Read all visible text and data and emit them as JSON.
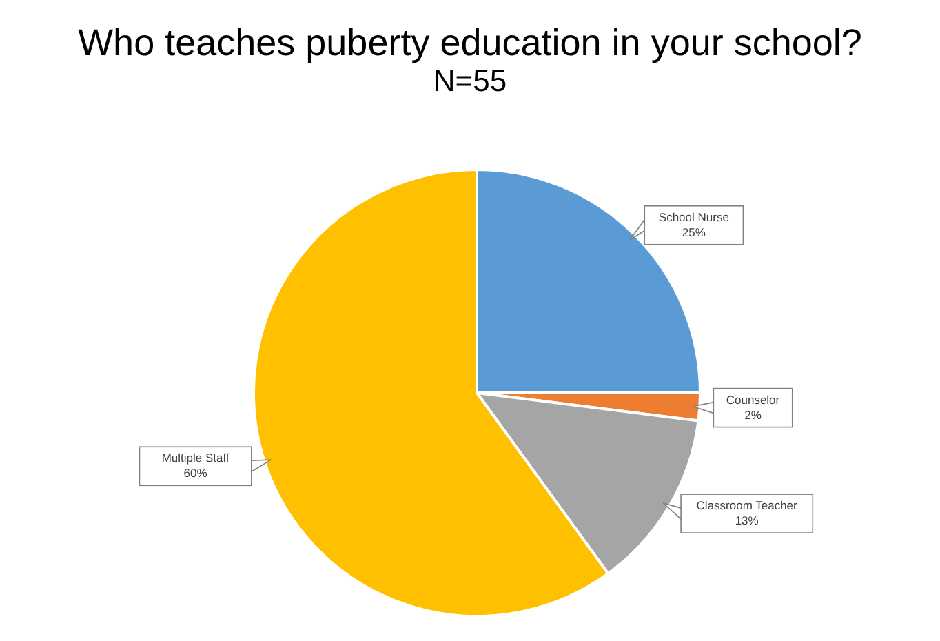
{
  "chart_data": {
    "type": "pie",
    "title": "Who teaches puberty education in your school?",
    "subtitle": "N=55",
    "categories": [
      "School Nurse",
      "Counselor",
      "Classroom Teacher",
      "Multiple Staff"
    ],
    "values": [
      25,
      2,
      13,
      60
    ],
    "value_labels": [
      "25%",
      "2%",
      "13%",
      "60%"
    ],
    "colors": [
      "#5b9bd5",
      "#ed7d31",
      "#a5a5a5",
      "#ffc000"
    ],
    "legend": false
  }
}
